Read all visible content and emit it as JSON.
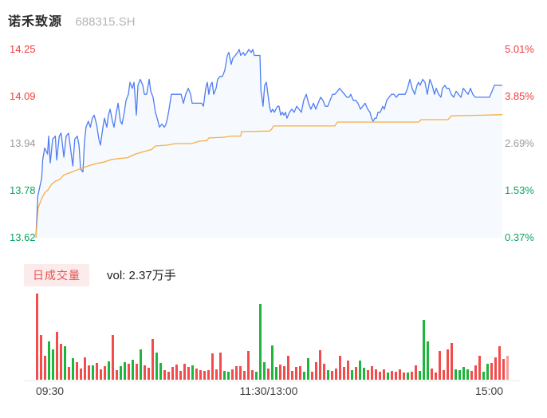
{
  "header": {
    "title": "诺禾致源",
    "code": "688315.SH"
  },
  "axes": {
    "left": [
      {
        "text": "14.25",
        "color": "#f23c3c"
      },
      {
        "text": "14.09",
        "color": "#f23c3c"
      },
      {
        "text": "13.94",
        "color": "#9b9b9b"
      },
      {
        "text": "13.78",
        "color": "#0da461"
      },
      {
        "text": "13.62",
        "color": "#0da461"
      }
    ],
    "right": [
      {
        "text": "5.01%",
        "color": "#f23c3c"
      },
      {
        "text": "3.85%",
        "color": "#f23c3c"
      },
      {
        "text": "2.69%",
        "color": "#9b9b9b"
      },
      {
        "text": "1.53%",
        "color": "#0da461"
      },
      {
        "text": "0.37%",
        "color": "#0da461"
      }
    ],
    "time": [
      {
        "text": "09:30"
      },
      {
        "text": "11:30/13:00"
      },
      {
        "text": "15:00"
      }
    ]
  },
  "volume_header": {
    "badge_label": "日成交量",
    "vol_text": "vol: 2.37万手"
  },
  "colors": {
    "price_line": "#4f7df2",
    "avg_line": "#f7ae46",
    "area_fill": "#f6f9fd",
    "vol_up": "#f34c4c",
    "vol_down": "#1eb53c",
    "vol_last": "#fb9b9b",
    "axis_line": "#e8e8e8",
    "badge_bg": "#fcebeb",
    "badge_text": "#e65353"
  },
  "chart_data": {
    "type": "line",
    "title": "诺禾致源 688315.SH intraday price with average line and volume",
    "x_labels": [
      "09:30",
      "11:30/13:00",
      "15:00"
    ],
    "x_range_minutes": [
      0,
      240
    ],
    "y_left_ticks": [
      14.25,
      14.09,
      13.94,
      13.78,
      13.62
    ],
    "y_right_ticks_pct": [
      "5.01%",
      "3.85%",
      "2.69%",
      "1.53%",
      "0.37%"
    ],
    "volume_total_label": "vol: 2.37万手",
    "price_points": [
      [
        0,
        13.62
      ],
      [
        1,
        13.76
      ],
      [
        2,
        13.79
      ],
      [
        3,
        13.82
      ],
      [
        3.5,
        13.88
      ],
      [
        4.5,
        13.92
      ],
      [
        6,
        13.9
      ],
      [
        6.6,
        13.96
      ],
      [
        7.4,
        13.87
      ],
      [
        8.6,
        13.95
      ],
      [
        10,
        13.96
      ],
      [
        10.7,
        13.88
      ],
      [
        12,
        13.96
      ],
      [
        13,
        13.97
      ],
      [
        14.4,
        13.89
      ],
      [
        15.6,
        13.96
      ],
      [
        16.8,
        13.97
      ],
      [
        18,
        13.91
      ],
      [
        19,
        13.86
      ],
      [
        20,
        13.95
      ],
      [
        21.3,
        13.96
      ],
      [
        22.2,
        13.93
      ],
      [
        23,
        13.85
      ],
      [
        24.2,
        13.84
      ],
      [
        25,
        13.94
      ],
      [
        25.8,
        13.99
      ],
      [
        27,
        14.01
      ],
      [
        28,
        13.99
      ],
      [
        29,
        14.02
      ],
      [
        30,
        14.03
      ],
      [
        31.2,
        14.0
      ],
      [
        32.4,
        13.95
      ],
      [
        33.2,
        13.93
      ],
      [
        34.5,
        13.99
      ],
      [
        35.3,
        14.02
      ],
      [
        36.5,
        13.99
      ],
      [
        37.3,
        14.03
      ],
      [
        38.2,
        14.05
      ],
      [
        39.4,
        14.01
      ],
      [
        40.2,
        13.99
      ],
      [
        41.4,
        14.04
      ],
      [
        42.3,
        14.07
      ],
      [
        43.5,
        14.01
      ],
      [
        44.3,
        14.0
      ],
      [
        45.5,
        14.04
      ],
      [
        46.4,
        14.08
      ],
      [
        47.6,
        14.1
      ],
      [
        48.4,
        14.14
      ],
      [
        49.6,
        14.12
      ],
      [
        50.5,
        14.14
      ],
      [
        51.7,
        14.03
      ],
      [
        52.5,
        14.13
      ],
      [
        53.7,
        14.15
      ],
      [
        55,
        14.13
      ],
      [
        55.8,
        14.1
      ],
      [
        57,
        14.1
      ],
      [
        58.3,
        14.15
      ],
      [
        59.1,
        14.11
      ],
      [
        60.3,
        14.09
      ],
      [
        61.5,
        14.04
      ],
      [
        62.4,
        14.02
      ],
      [
        63.6,
        13.99
      ],
      [
        64.8,
        14.0
      ],
      [
        66.1,
        13.99
      ],
      [
        66.9,
        14.0
      ],
      [
        67.7,
        14.02
      ],
      [
        68.5,
        14.05
      ],
      [
        69.7,
        14.1
      ],
      [
        71,
        14.1
      ],
      [
        72.2,
        14.1
      ],
      [
        73.4,
        14.1
      ],
      [
        74.7,
        14.1
      ],
      [
        75.9,
        14.07
      ],
      [
        77.1,
        14.1
      ],
      [
        78.4,
        14.12
      ],
      [
        79.6,
        14.1
      ],
      [
        80.4,
        14.07
      ],
      [
        82.9,
        14.07
      ],
      [
        85.3,
        14.07
      ],
      [
        86.2,
        14.06
      ],
      [
        87.4,
        14.12
      ],
      [
        88.2,
        14.14
      ],
      [
        89,
        14.1
      ],
      [
        89.8,
        14.13
      ],
      [
        90.7,
        14.14
      ],
      [
        91.5,
        14.1
      ],
      [
        92.7,
        14.12
      ],
      [
        93.5,
        14.15
      ],
      [
        94.8,
        14.16
      ],
      [
        96,
        14.16
      ],
      [
        97.2,
        14.18
      ],
      [
        98.5,
        14.23
      ],
      [
        99.3,
        14.24
      ],
      [
        100.5,
        14.2
      ],
      [
        101.3,
        14.22
      ],
      [
        102.6,
        14.23
      ],
      [
        103.8,
        14.24
      ],
      [
        104.6,
        14.25
      ],
      [
        105.4,
        14.23
      ],
      [
        106.7,
        14.24
      ],
      [
        107.5,
        14.23
      ],
      [
        108.7,
        14.24
      ],
      [
        109.5,
        14.25
      ],
      [
        110.8,
        14.24
      ],
      [
        111.6,
        14.25
      ],
      [
        112.4,
        14.23
      ],
      [
        113.6,
        14.23
      ],
      [
        114.5,
        14.23
      ],
      [
        115.3,
        14.23
      ],
      [
        115.8,
        14.11
      ],
      [
        116.1,
        14.1
      ],
      [
        116.9,
        14.06
      ],
      [
        117.7,
        14.13
      ],
      [
        118.6,
        14.14
      ],
      [
        119.4,
        14.1
      ],
      [
        120.2,
        14.06
      ],
      [
        121,
        14.04
      ],
      [
        121.8,
        14.05
      ],
      [
        122.7,
        14.04
      ],
      [
        123.5,
        14.05
      ],
      [
        124.3,
        14.06
      ],
      [
        125.1,
        14.06
      ],
      [
        126,
        14.03
      ],
      [
        126.8,
        14.04
      ],
      [
        127.6,
        14.03
      ],
      [
        128.4,
        14.04
      ],
      [
        129.2,
        14.02
      ],
      [
        130.5,
        14.04
      ],
      [
        131.7,
        14.05
      ],
      [
        132.9,
        14.04
      ],
      [
        134.2,
        14.06
      ],
      [
        135.4,
        14.05
      ],
      [
        136.6,
        14.04
      ],
      [
        137.8,
        14.08
      ],
      [
        139.1,
        14.1
      ],
      [
        140.3,
        14.07
      ],
      [
        141.5,
        14.05
      ],
      [
        142.8,
        14.07
      ],
      [
        144,
        14.05
      ],
      [
        145.2,
        14.07
      ],
      [
        146.5,
        14.09
      ],
      [
        147.7,
        14.08
      ],
      [
        148.9,
        14.06
      ],
      [
        150.2,
        14.06
      ],
      [
        151.4,
        14.08
      ],
      [
        152.6,
        14.1
      ],
      [
        153.8,
        14.1
      ],
      [
        155.1,
        14.11
      ],
      [
        156.3,
        14.12
      ],
      [
        157.5,
        14.11
      ],
      [
        158.8,
        14.1
      ],
      [
        160,
        14.09
      ],
      [
        161.2,
        14.09
      ],
      [
        162,
        14.1
      ],
      [
        163.3,
        14.08
      ],
      [
        164.5,
        14.08
      ],
      [
        165.7,
        14.07
      ],
      [
        167,
        14.05
      ],
      [
        168.2,
        14.06
      ],
      [
        169.4,
        14.07
      ],
      [
        170.7,
        14.05
      ],
      [
        171.9,
        14.04
      ],
      [
        172.7,
        14.02
      ],
      [
        173.5,
        14.01
      ],
      [
        174.4,
        14.02
      ],
      [
        175.2,
        14.02
      ],
      [
        176,
        14.04
      ],
      [
        177.2,
        14.04
      ],
      [
        178.5,
        14.06
      ],
      [
        179.3,
        14.05
      ],
      [
        180.5,
        14.08
      ],
      [
        181.7,
        14.09
      ],
      [
        183,
        14.1
      ],
      [
        184.2,
        14.1
      ],
      [
        185.4,
        14.09
      ],
      [
        186.7,
        14.1
      ],
      [
        187.9,
        14.1
      ],
      [
        189.1,
        14.1
      ],
      [
        190,
        14.1
      ],
      [
        191.2,
        14.12
      ],
      [
        192.4,
        14.15
      ],
      [
        193.6,
        14.12
      ],
      [
        194.9,
        14.1
      ],
      [
        196.1,
        14.13
      ],
      [
        196.9,
        14.14
      ],
      [
        197.7,
        14.13
      ],
      [
        199,
        14.15
      ],
      [
        200.2,
        14.14
      ],
      [
        201.4,
        14.1
      ],
      [
        202.7,
        14.15
      ],
      [
        203.9,
        14.13
      ],
      [
        205.1,
        14.1
      ],
      [
        206,
        14.12
      ],
      [
        207.2,
        14.1
      ],
      [
        208.4,
        14.09
      ],
      [
        209.2,
        14.12
      ],
      [
        210.5,
        14.13
      ],
      [
        211.3,
        14.12
      ],
      [
        212.5,
        14.12
      ],
      [
        213.7,
        14.1
      ],
      [
        215,
        14.09
      ],
      [
        216.2,
        14.11
      ],
      [
        217.4,
        14.1
      ],
      [
        218.7,
        14.09
      ],
      [
        219.9,
        14.12
      ],
      [
        221.1,
        14.11
      ],
      [
        222.4,
        14.1
      ],
      [
        223.6,
        14.12
      ],
      [
        224.8,
        14.1
      ],
      [
        226.1,
        14.09
      ],
      [
        227.3,
        14.09
      ],
      [
        228.5,
        14.09
      ],
      [
        229.7,
        14.09
      ],
      [
        231,
        14.09
      ],
      [
        232.2,
        14.09
      ],
      [
        233.4,
        14.09
      ],
      [
        234.7,
        14.11
      ],
      [
        235.9,
        14.13
      ],
      [
        237.1,
        14.13
      ],
      [
        238.4,
        14.13
      ],
      [
        240,
        14.13
      ]
    ],
    "avg_points": [
      [
        0,
        13.62
      ],
      [
        1.2,
        13.72
      ],
      [
        2.9,
        13.75
      ],
      [
        4.5,
        13.77
      ],
      [
        6.2,
        13.78
      ],
      [
        8.2,
        13.8
      ],
      [
        10.3,
        13.81
      ],
      [
        12.3,
        13.815
      ],
      [
        14.4,
        13.83
      ],
      [
        16.4,
        13.835
      ],
      [
        18.5,
        13.84
      ],
      [
        20.5,
        13.845
      ],
      [
        22.6,
        13.85
      ],
      [
        24.6,
        13.855
      ],
      [
        26.7,
        13.86
      ],
      [
        30.8,
        13.868
      ],
      [
        34.9,
        13.873
      ],
      [
        39,
        13.882
      ],
      [
        43,
        13.885
      ],
      [
        47.2,
        13.888
      ],
      [
        49.2,
        13.894
      ],
      [
        51.3,
        13.9
      ],
      [
        55.4,
        13.908
      ],
      [
        59.5,
        13.915
      ],
      [
        61.5,
        13.927
      ],
      [
        67.7,
        13.93
      ],
      [
        71.8,
        13.935
      ],
      [
        80,
        13.935
      ],
      [
        84.1,
        13.943
      ],
      [
        88,
        13.945
      ],
      [
        89,
        13.954
      ],
      [
        96.4,
        13.956
      ],
      [
        100.5,
        13.96
      ],
      [
        105.4,
        13.96
      ],
      [
        105.8,
        13.975
      ],
      [
        120,
        13.977
      ],
      [
        121,
        13.98
      ],
      [
        122.3,
        13.994
      ],
      [
        150,
        13.994
      ],
      [
        153.8,
        13.994
      ],
      [
        155.1,
        14.007
      ],
      [
        197,
        14.007
      ],
      [
        198.2,
        14.015
      ],
      [
        212,
        14.015
      ],
      [
        213.7,
        14.028
      ],
      [
        230,
        14.03
      ],
      [
        240,
        14.032
      ]
    ],
    "volume_bars": [
      [
        108,
        "u"
      ],
      [
        56,
        "u"
      ],
      [
        30,
        "u"
      ],
      [
        48,
        "d"
      ],
      [
        38,
        "d"
      ],
      [
        60,
        "u"
      ],
      [
        45,
        "u"
      ],
      [
        42,
        "d"
      ],
      [
        16,
        "u"
      ],
      [
        27,
        "d"
      ],
      [
        22,
        "u"
      ],
      [
        14,
        "u"
      ],
      [
        28,
        "u"
      ],
      [
        18,
        "u"
      ],
      [
        18,
        "d"
      ],
      [
        21,
        "u"
      ],
      [
        13,
        "u"
      ],
      [
        17,
        "u"
      ],
      [
        23,
        "d"
      ],
      [
        56,
        "u"
      ],
      [
        12,
        "u"
      ],
      [
        17,
        "d"
      ],
      [
        22,
        "d"
      ],
      [
        20,
        "u"
      ],
      [
        25,
        "d"
      ],
      [
        20,
        "u"
      ],
      [
        38,
        "d"
      ],
      [
        18,
        "u"
      ],
      [
        15,
        "u"
      ],
      [
        51,
        "u"
      ],
      [
        34,
        "d"
      ],
      [
        21,
        "d"
      ],
      [
        12,
        "u"
      ],
      [
        10,
        "u"
      ],
      [
        16,
        "u"
      ],
      [
        19,
        "u"
      ],
      [
        11,
        "u"
      ],
      [
        20,
        "u"
      ],
      [
        16,
        "u"
      ],
      [
        18,
        "d"
      ],
      [
        14,
        "u"
      ],
      [
        12,
        "u"
      ],
      [
        11,
        "u"
      ],
      [
        12,
        "u"
      ],
      [
        33,
        "u"
      ],
      [
        13,
        "u"
      ],
      [
        34,
        "u"
      ],
      [
        11,
        "d"
      ],
      [
        10,
        "d"
      ],
      [
        13,
        "u"
      ],
      [
        17,
        "u"
      ],
      [
        17,
        "u"
      ],
      [
        11,
        "u"
      ],
      [
        36,
        "u"
      ],
      [
        12,
        "u"
      ],
      [
        10,
        "d"
      ],
      [
        95,
        "d"
      ],
      [
        22,
        "d"
      ],
      [
        14,
        "u"
      ],
      [
        43,
        "d"
      ],
      [
        16,
        "d"
      ],
      [
        19,
        "u"
      ],
      [
        17,
        "u"
      ],
      [
        30,
        "u"
      ],
      [
        11,
        "u"
      ],
      [
        16,
        "u"
      ],
      [
        17,
        "u"
      ],
      [
        10,
        "d"
      ],
      [
        27,
        "d"
      ],
      [
        10,
        "u"
      ],
      [
        22,
        "u"
      ],
      [
        37,
        "u"
      ],
      [
        20,
        "u"
      ],
      [
        12,
        "d"
      ],
      [
        11,
        "u"
      ],
      [
        14,
        "u"
      ],
      [
        30,
        "u"
      ],
      [
        16,
        "u"
      ],
      [
        24,
        "u"
      ],
      [
        12,
        "d"
      ],
      [
        16,
        "u"
      ],
      [
        24,
        "d"
      ],
      [
        15,
        "d"
      ],
      [
        12,
        "u"
      ],
      [
        17,
        "u"
      ],
      [
        13,
        "u"
      ],
      [
        10,
        "u"
      ],
      [
        13,
        "u"
      ],
      [
        9,
        "d"
      ],
      [
        11,
        "u"
      ],
      [
        10,
        "u"
      ],
      [
        13,
        "u"
      ],
      [
        9,
        "u"
      ],
      [
        9,
        "d"
      ],
      [
        10,
        "u"
      ],
      [
        18,
        "u"
      ],
      [
        11,
        "d"
      ],
      [
        75,
        "d"
      ],
      [
        48,
        "d"
      ],
      [
        14,
        "u"
      ],
      [
        9,
        "u"
      ],
      [
        36,
        "u"
      ],
      [
        12,
        "u"
      ],
      [
        38,
        "u"
      ],
      [
        46,
        "u"
      ],
      [
        13,
        "d"
      ],
      [
        12,
        "d"
      ],
      [
        16,
        "d"
      ],
      [
        13,
        "d"
      ],
      [
        11,
        "u"
      ],
      [
        18,
        "u"
      ],
      [
        30,
        "u"
      ],
      [
        10,
        "d"
      ],
      [
        20,
        "d"
      ],
      [
        21,
        "u"
      ],
      [
        28,
        "u"
      ],
      [
        42,
        "u"
      ],
      [
        26,
        "u"
      ],
      [
        30,
        "l"
      ]
    ]
  }
}
